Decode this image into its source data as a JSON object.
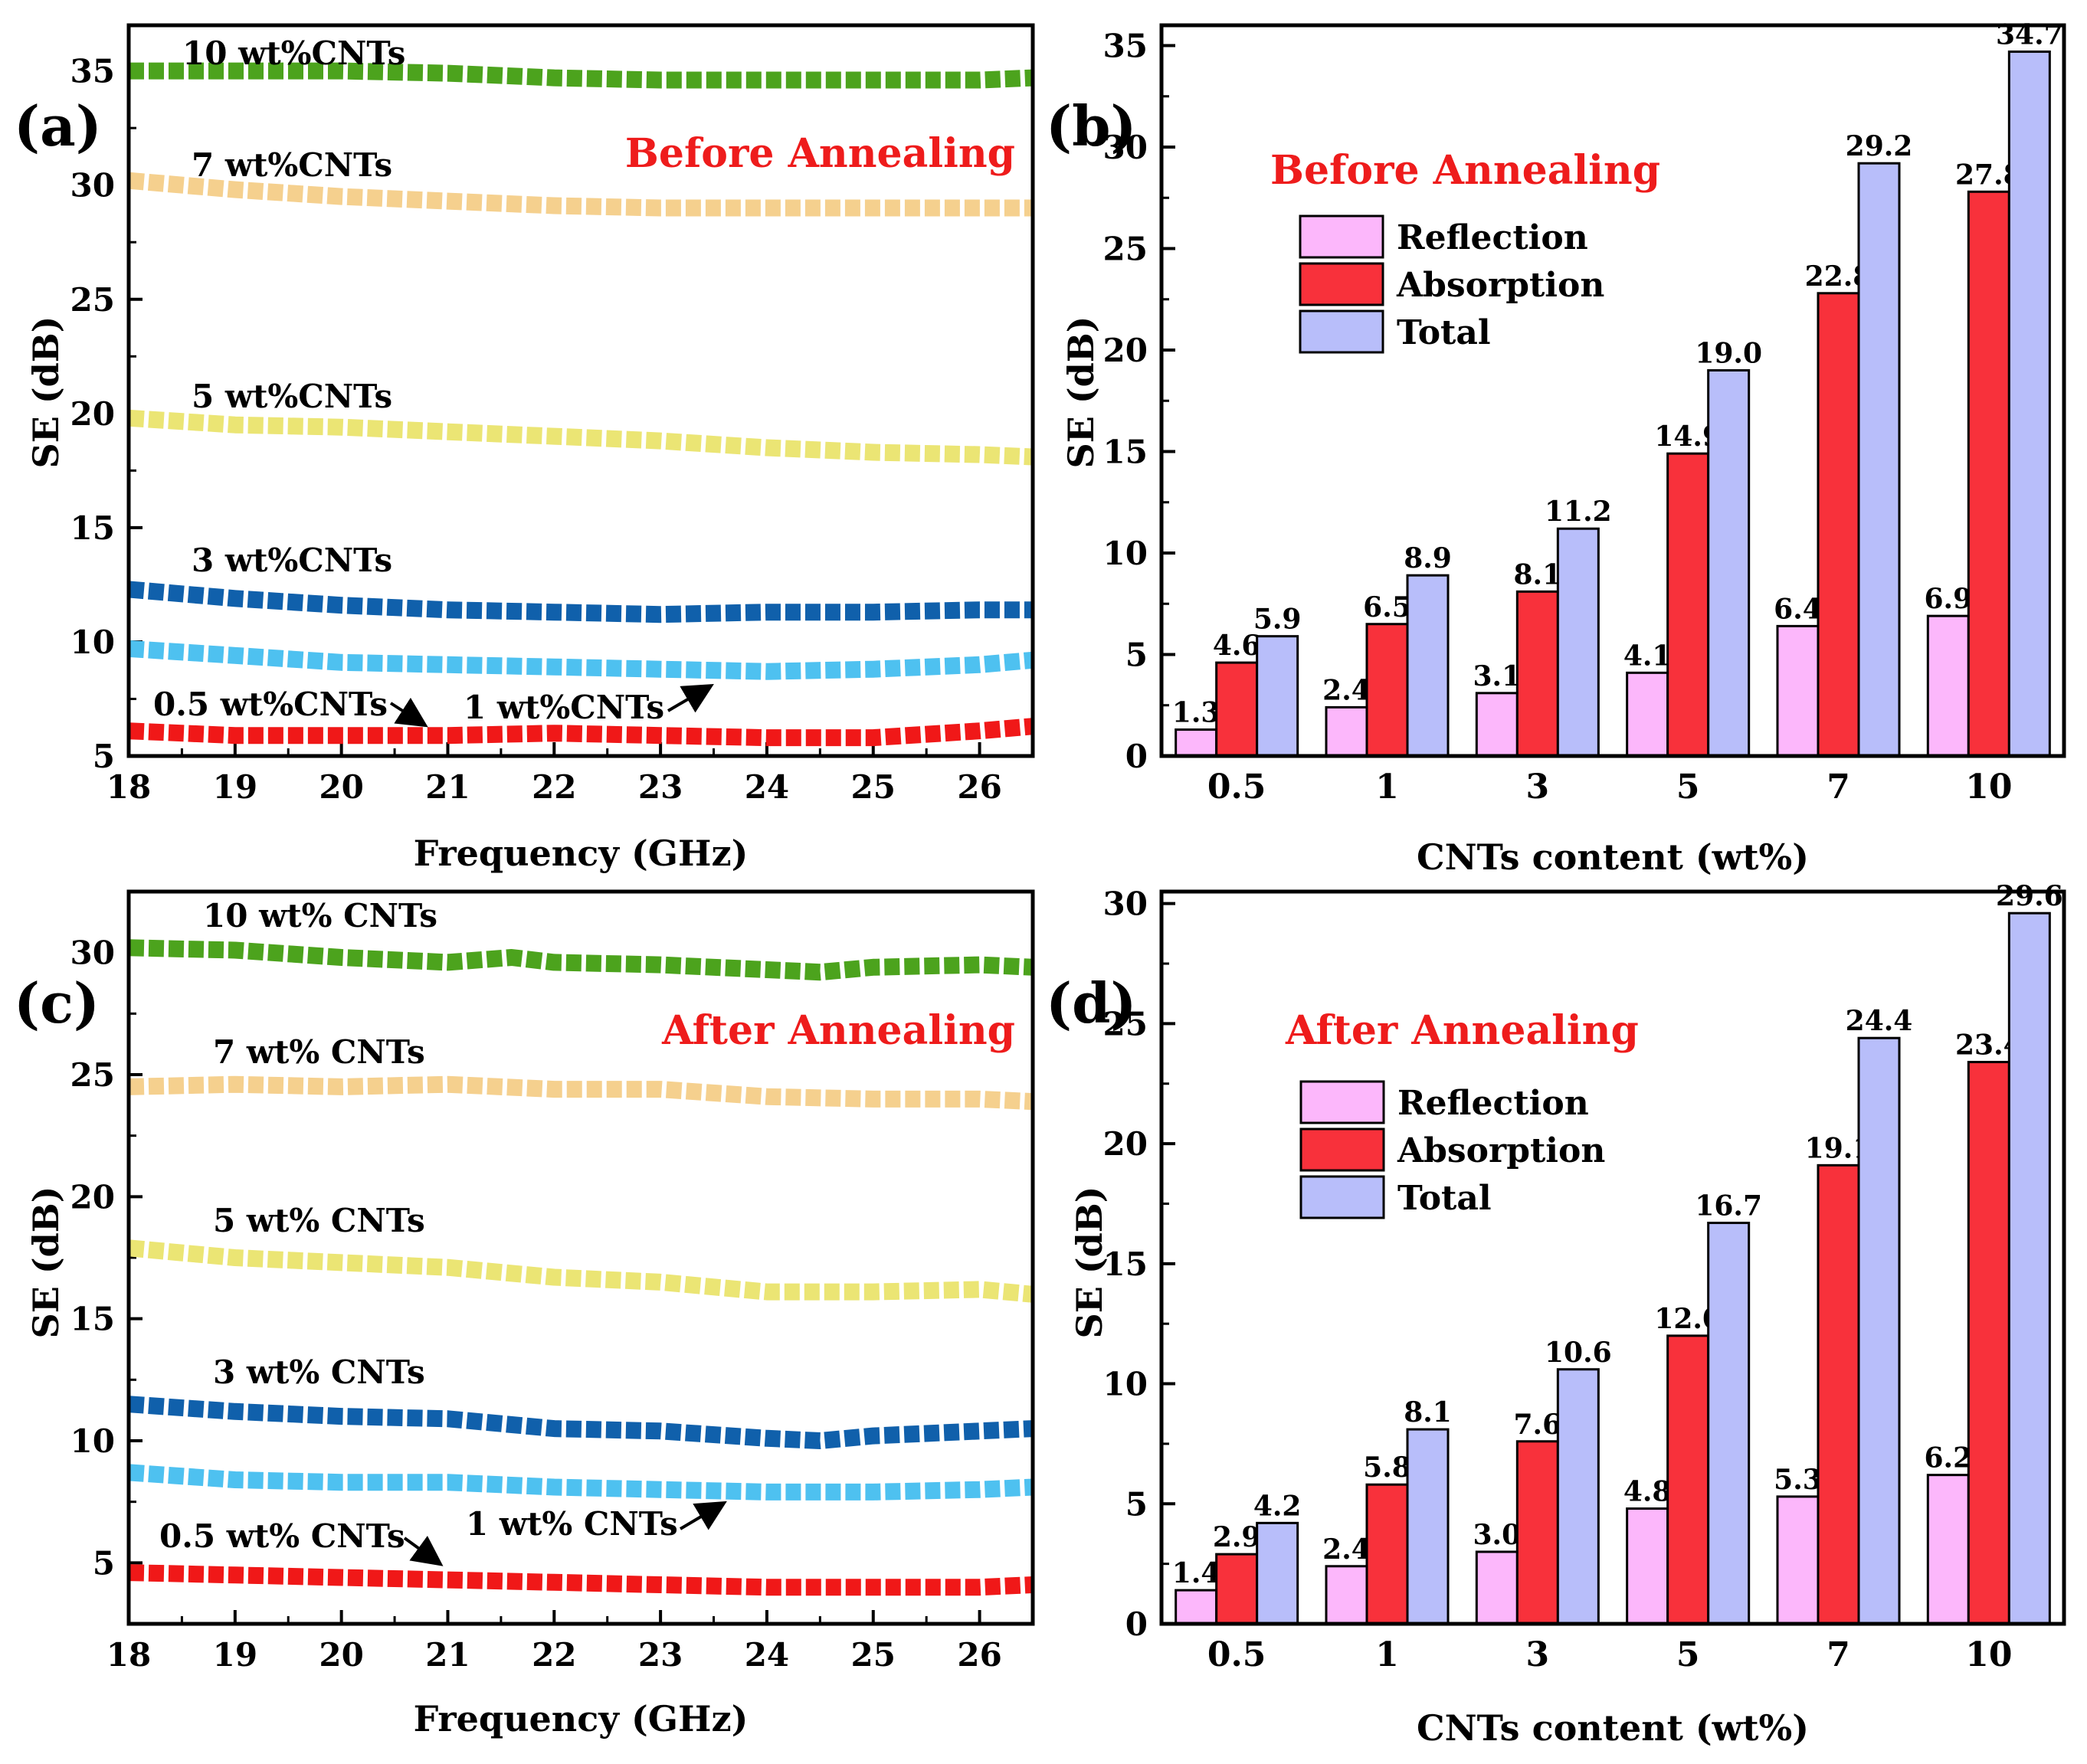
{
  "chart_data": [
    {
      "panel": "(a)",
      "type": "line",
      "annotation": "Before Annealing",
      "xlabel": "Frequency (GHz)",
      "ylabel": "SE (dB)",
      "xlim": [
        18,
        26.5
      ],
      "ylim": [
        5,
        37
      ],
      "xticks": [
        18,
        19,
        20,
        21,
        22,
        23,
        24,
        25,
        26
      ],
      "yticks": [
        5,
        10,
        15,
        20,
        25,
        30,
        35
      ],
      "series": [
        {
          "name": "10 wt%CNTs",
          "color": "#4ca31d",
          "x": [
            18,
            19,
            20,
            21,
            22,
            23,
            24,
            25,
            26,
            26.5
          ],
          "y": [
            35.0,
            35.0,
            35.0,
            34.9,
            34.7,
            34.6,
            34.6,
            34.6,
            34.6,
            34.7
          ]
        },
        {
          "name": "7 wt%CNTs",
          "color": "#f5d08e",
          "x": [
            18,
            19,
            20,
            21,
            22,
            23,
            24,
            25,
            26,
            26.5
          ],
          "y": [
            30.2,
            29.8,
            29.5,
            29.3,
            29.1,
            29.0,
            29.0,
            29.0,
            29.0,
            29.0
          ]
        },
        {
          "name": "5 wt%CNTs",
          "color": "#ebe574",
          "x": [
            18,
            19,
            20,
            21,
            22,
            23,
            24,
            25,
            26,
            26.5
          ],
          "y": [
            19.8,
            19.5,
            19.4,
            19.2,
            19.0,
            18.8,
            18.5,
            18.3,
            18.2,
            18.1
          ]
        },
        {
          "name": "3 wt%CNTs",
          "color": "#1060ab",
          "x": [
            18,
            19,
            20,
            21,
            22,
            23,
            24,
            25,
            26,
            26.5
          ],
          "y": [
            12.3,
            11.9,
            11.6,
            11.4,
            11.3,
            11.2,
            11.3,
            11.3,
            11.4,
            11.4
          ]
        },
        {
          "name": "1 wt%CNTs",
          "color": "#4ec1f0",
          "x": [
            18,
            19,
            20,
            21,
            22,
            23,
            24,
            25,
            26,
            26.5
          ],
          "y": [
            9.7,
            9.4,
            9.1,
            9.0,
            8.9,
            8.8,
            8.7,
            8.8,
            9.0,
            9.2
          ]
        },
        {
          "name": "0.5 wt%CNTs",
          "color": "#f01818",
          "x": [
            18,
            19,
            20,
            21,
            22,
            23,
            24,
            25,
            26,
            26.5
          ],
          "y": [
            6.1,
            5.9,
            5.9,
            5.9,
            6.0,
            5.9,
            5.8,
            5.8,
            6.1,
            6.3
          ]
        }
      ]
    },
    {
      "panel": "(b)",
      "type": "bar",
      "annotation": "Before Annealing",
      "xlabel": "CNTs content (wt%)",
      "ylabel": "SE (dB)",
      "ylim": [
        0,
        36
      ],
      "yticks": [
        0,
        5,
        10,
        15,
        20,
        25,
        30,
        35
      ],
      "categories": [
        "0.5",
        "1",
        "3",
        "5",
        "7",
        "10"
      ],
      "series": [
        {
          "name": "Reflection",
          "color": "#fcb7fb",
          "values": [
            1.3,
            2.4,
            3.1,
            4.1,
            6.4,
            6.9
          ],
          "labels": [
            "1.3",
            "2.4",
            "3.1",
            "4.1",
            "6.4",
            "6.9"
          ]
        },
        {
          "name": "Absorption",
          "color": "#f8313b",
          "values": [
            4.6,
            6.5,
            8.1,
            14.9,
            22.8,
            27.8
          ],
          "labels": [
            "4.6",
            "6.5",
            "8.1",
            "14.9",
            "22.8",
            "27.8"
          ]
        },
        {
          "name": "Total",
          "color": "#b8befa",
          "values": [
            5.9,
            8.9,
            11.2,
            19.0,
            29.2,
            34.7
          ],
          "labels": [
            "5.9",
            "8.9",
            "11.2",
            "19.0",
            "29.2",
            "34.7"
          ]
        }
      ]
    },
    {
      "panel": "(c)",
      "type": "line",
      "annotation": "After Annealing",
      "xlabel": "Frequency (GHz)",
      "ylabel": "SE (dB)",
      "xlim": [
        18,
        26.5
      ],
      "ylim": [
        2.5,
        32.5
      ],
      "xticks": [
        18,
        19,
        20,
        21,
        22,
        23,
        24,
        25,
        26
      ],
      "yticks": [
        5,
        10,
        15,
        20,
        25,
        30
      ],
      "series": [
        {
          "name": "10 wt% CNTs",
          "color": "#4ca31d",
          "x": [
            18,
            19,
            20,
            21,
            21.6,
            22,
            23,
            24,
            24.5,
            25,
            26,
            26.5
          ],
          "y": [
            30.2,
            30.1,
            29.8,
            29.6,
            29.8,
            29.6,
            29.5,
            29.3,
            29.2,
            29.4,
            29.5,
            29.4
          ]
        },
        {
          "name": "7 wt% CNTs",
          "color": "#f5d08e",
          "x": [
            18,
            19,
            20,
            21,
            22,
            23,
            24,
            25,
            26,
            26.5
          ],
          "y": [
            24.5,
            24.6,
            24.5,
            24.6,
            24.4,
            24.4,
            24.1,
            24.0,
            24.0,
            23.9
          ]
        },
        {
          "name": "5 wt% CNTs",
          "color": "#ebe574",
          "x": [
            18,
            19,
            20,
            21,
            22,
            23,
            24,
            25,
            26,
            26.5
          ],
          "y": [
            17.9,
            17.5,
            17.3,
            17.1,
            16.7,
            16.5,
            16.1,
            16.1,
            16.2,
            16.0
          ]
        },
        {
          "name": "3 wt% CNTs",
          "color": "#1060ab",
          "x": [
            18,
            19,
            20,
            21,
            22,
            23,
            24,
            24.5,
            25,
            26,
            26.5
          ],
          "y": [
            11.5,
            11.2,
            11.0,
            10.9,
            10.5,
            10.4,
            10.1,
            10.0,
            10.2,
            10.4,
            10.5
          ]
        },
        {
          "name": "1 wt% CNTs",
          "color": "#4ec1f0",
          "x": [
            18,
            19,
            20,
            21,
            22,
            23,
            24,
            25,
            26,
            26.5
          ],
          "y": [
            8.7,
            8.4,
            8.3,
            8.3,
            8.1,
            8.0,
            7.9,
            7.9,
            8.0,
            8.1
          ]
        },
        {
          "name": "0.5 wt% CNTs",
          "color": "#f01818",
          "x": [
            18,
            19,
            20,
            21,
            22,
            23,
            24,
            25,
            26,
            26.5
          ],
          "y": [
            4.6,
            4.5,
            4.4,
            4.3,
            4.2,
            4.1,
            4.0,
            4.0,
            4.0,
            4.1
          ]
        }
      ]
    },
    {
      "panel": "(d)",
      "type": "bar",
      "annotation": "After Annealing",
      "xlabel": "CNTs content (wt%)",
      "ylabel": "SE (dB)",
      "ylim": [
        0,
        30.5
      ],
      "yticks": [
        0,
        5,
        10,
        15,
        20,
        25,
        30
      ],
      "categories": [
        "0.5",
        "1",
        "3",
        "5",
        "7",
        "10"
      ],
      "series": [
        {
          "name": "Reflection",
          "color": "#fcb7fb",
          "values": [
            1.4,
            2.4,
            3.0,
            4.8,
            5.3,
            6.2
          ],
          "labels": [
            "1.4",
            "2.4",
            "3.0",
            "4.8",
            "5.3",
            "6.2"
          ]
        },
        {
          "name": "Absorption",
          "color": "#f8313b",
          "values": [
            2.9,
            5.8,
            7.6,
            12.0,
            19.1,
            23.4
          ],
          "labels": [
            "2.9",
            "5.8",
            "7.6",
            "12.0",
            "19.1",
            "23.4"
          ]
        },
        {
          "name": "Total",
          "color": "#b8befa",
          "values": [
            4.2,
            8.1,
            10.6,
            16.7,
            24.4,
            29.6
          ],
          "labels": [
            "4.2",
            "8.1",
            "10.6",
            "16.7",
            "24.4",
            "29.6"
          ]
        }
      ]
    }
  ]
}
